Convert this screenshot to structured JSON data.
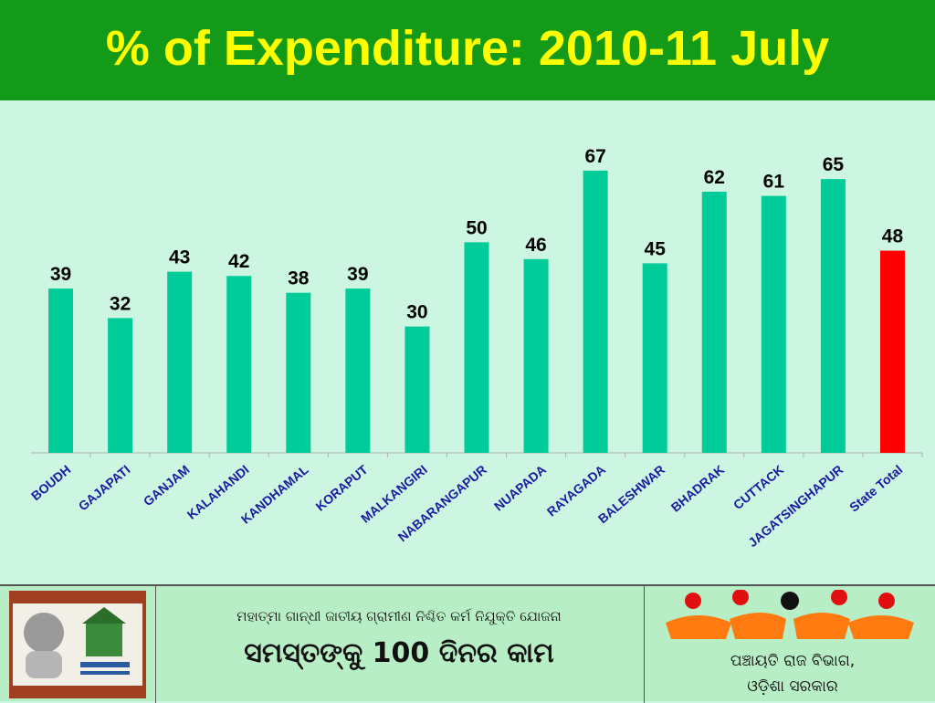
{
  "header": {
    "title": "% of Expenditure: 2010-11 July"
  },
  "colors": {
    "header_bg": "#129a18",
    "title": "#ffff00",
    "plot_bg": "#ccf6e2",
    "bar": "#00cc99",
    "highlight_bar": "#ff0000"
  },
  "chart_data": {
    "type": "bar",
    "title": "% of Expenditure: 2010-11 July",
    "categories": [
      "BOUDH",
      "GAJAPATI",
      "GANJAM",
      "KALAHANDI",
      "KANDHAMAL",
      "KORAPUT",
      "MALKANGIRI",
      "NABARANGAPUR",
      "NUAPADA",
      "RAYAGADA",
      "BALESHWAR",
      "BHADRAK",
      "CUTTACK",
      "JAGATSINGHAPUR",
      "State Total"
    ],
    "values": [
      39,
      32,
      43,
      42,
      38,
      39,
      30,
      50,
      46,
      67,
      45,
      62,
      61,
      65,
      48
    ],
    "highlight_category": "State Total",
    "ylim": [
      0,
      75
    ],
    "grid": false,
    "data_labels": true
  },
  "footer": {
    "logo_left_icon": "gandhi-nrega-logo",
    "scheme_line": "ମହାତ୍ମା ଗାନ୍ଧୀ ଜାତୀୟ ଗ୍ରାମୀଣ ନିଶ୍ଚିତ କର୍ମ ନିଯୁକ୍ତି ଯୋଜନା",
    "slogan": "ସମସ୍ତଙ୍କୁ 100 ଦିନର କାମ",
    "logo_right_icon": "panchayati-raj-logo",
    "department": "ପଞ୍ଚାୟତି ରାଜ ବିଭାଗ,",
    "government": "ଓଡ଼ିଶା ସରକାର"
  }
}
